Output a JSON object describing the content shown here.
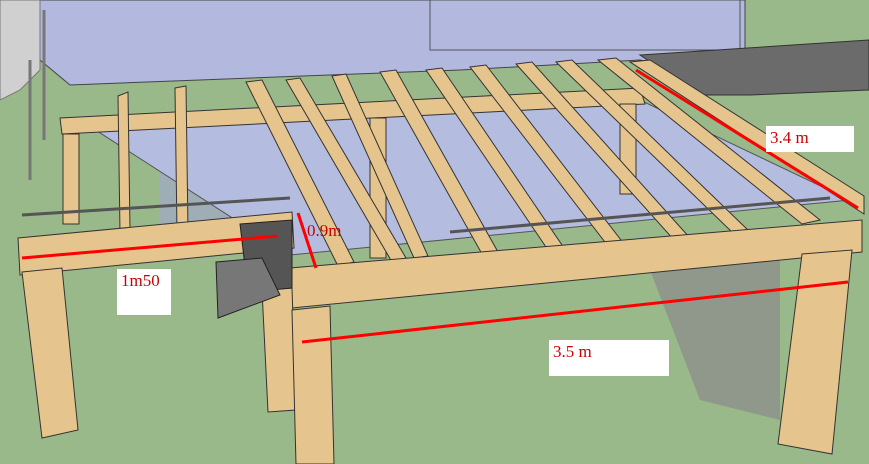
{
  "dimensions": {
    "width_label": "1m50",
    "length_label": "3.5 m",
    "depth_label": "3.4 m",
    "gap_label": "0.9m"
  },
  "colors": {
    "ground": "#99b98a",
    "house_wall": "#b3b8de",
    "wood": "#e6c48d",
    "wood_dark": "#b99055",
    "dimension_line": "#ff0000",
    "label_text": "#cc0000"
  }
}
